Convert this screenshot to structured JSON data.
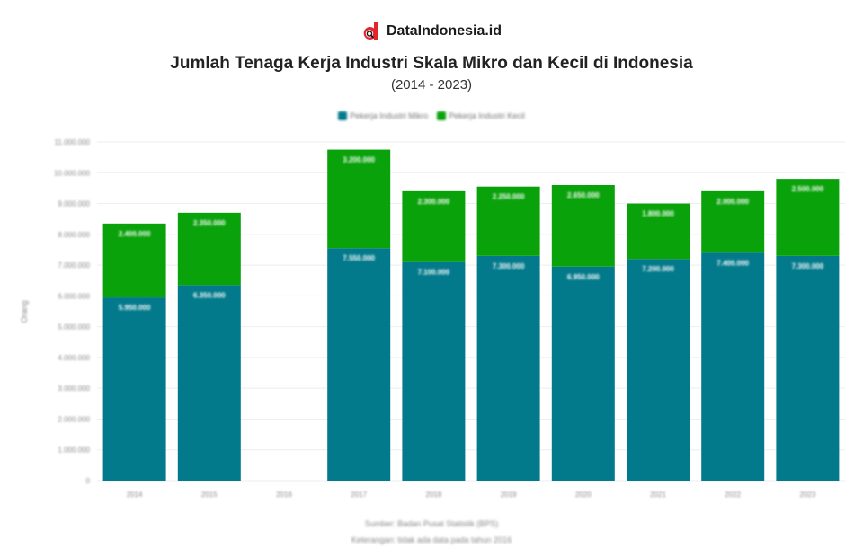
{
  "brand": {
    "name": "DataIndonesia.id",
    "logo_icon": "dataindonesia-logo-icon",
    "logo_color": "#e3262c"
  },
  "chart_data": {
    "type": "bar",
    "stacked": true,
    "title": "Jumlah Tenaga Kerja Industri Skala Mikro dan Kecil di Indonesia",
    "subtitle": "(2014 - 2023)",
    "ylabel": "Orang",
    "xlabel": "",
    "ylim": [
      0,
      11000000
    ],
    "yticks": [
      0,
      1000000,
      2000000,
      3000000,
      4000000,
      5000000,
      6000000,
      7000000,
      8000000,
      9000000,
      10000000,
      11000000
    ],
    "ytick_labels": [
      "0",
      "1.000.000",
      "2.000.000",
      "3.000.000",
      "4.000.000",
      "5.000.000",
      "6.000.000",
      "7.000.000",
      "8.000.000",
      "9.000.000",
      "10.000.000",
      "11.000.000"
    ],
    "grid": true,
    "legend_position": "top-center",
    "categories": [
      "2014",
      "2015",
      "2016",
      "2017",
      "2018",
      "2019",
      "2020",
      "2021",
      "2022",
      "2023"
    ],
    "series": [
      {
        "name": "Pekerja Industri Mikro",
        "color": "#037a8b",
        "values": [
          5950000,
          6350000,
          null,
          7550000,
          7100000,
          7300000,
          6950000,
          7200000,
          7400000,
          7300000
        ],
        "labels": [
          "5.950.000",
          "6.350.000",
          "",
          "7.550.000",
          "7.100.000",
          "7.300.000",
          "6.950.000",
          "7.200.000",
          "7.400.000",
          "7.300.000"
        ]
      },
      {
        "name": "Pekerja Industri Kecil",
        "color": "#0aa20b",
        "values": [
          2400000,
          2350000,
          null,
          3200000,
          2300000,
          2250000,
          2650000,
          1800000,
          2000000,
          2500000
        ],
        "labels": [
          "2.400.000",
          "2.350.000",
          "",
          "3.200.000",
          "2.300.000",
          "2.250.000",
          "2.650.000",
          "1.800.000",
          "2.000.000",
          "2.500.000"
        ]
      }
    ]
  },
  "footer": {
    "source": "Sumber: Badan Pusat Statistik (BPS)",
    "note": "Keterangan: tidak ada data pada tahun 2016"
  }
}
